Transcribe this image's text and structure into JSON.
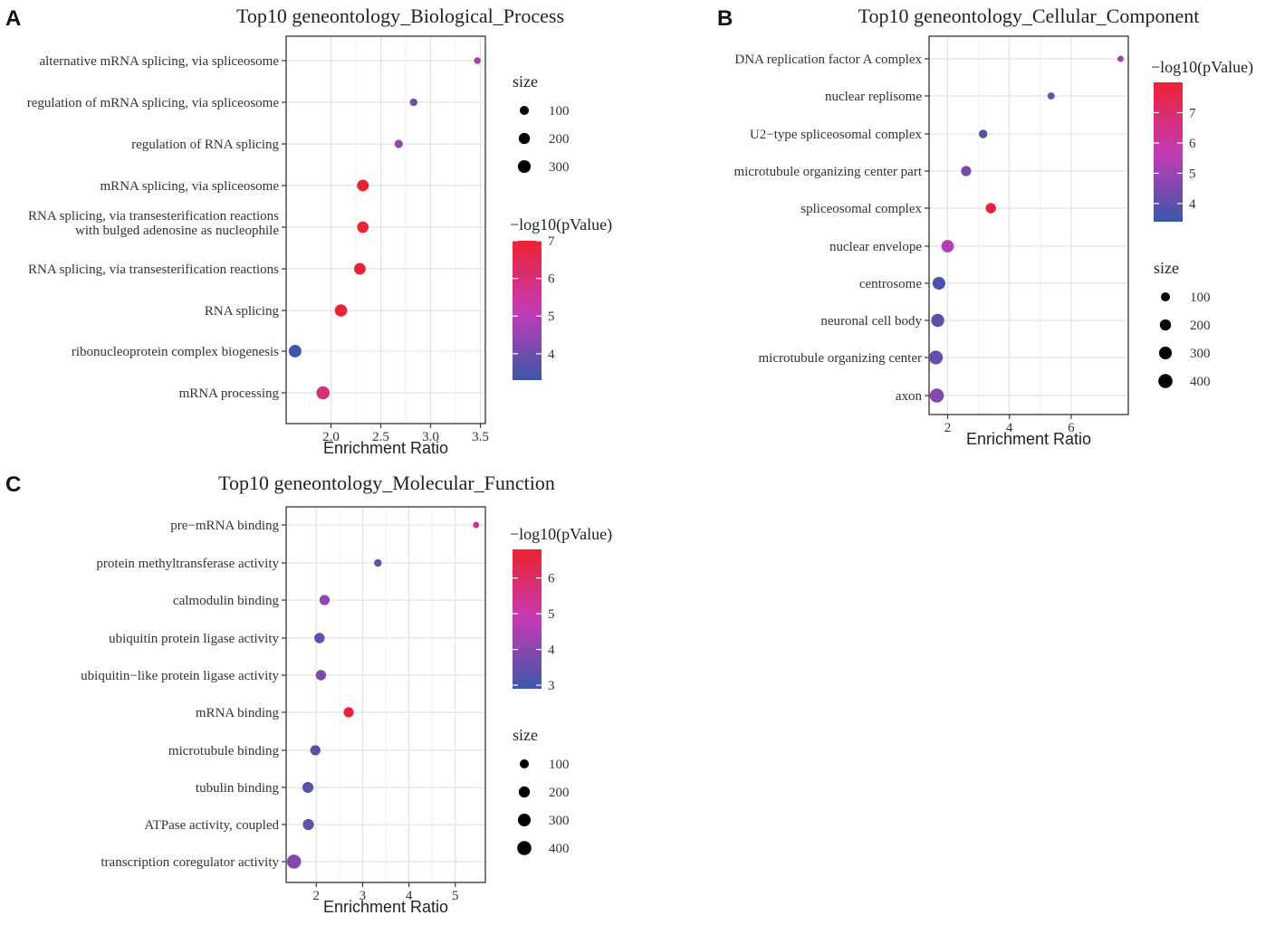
{
  "colors": {
    "low": "#3b57a8",
    "mid": "#c43bb5",
    "high": "#ee2130",
    "grid": "#e3e3e3",
    "axis": "#333333",
    "text": "#333333"
  },
  "chart_data": [
    {
      "type": "scatter",
      "panel_label": "A",
      "title": "Top10 geneontology_Biological_Process",
      "xlabel": "Enrichment Ratio",
      "xlim": [
        1.55,
        3.55
      ],
      "xticks": [
        "2.0",
        "2.5",
        "3.0",
        "3.5"
      ],
      "xtick_values": [
        2.0,
        2.5,
        3.0,
        3.5
      ],
      "categories": [
        "alternative mRNA splicing, via spliceosome",
        "regulation of mRNA splicing, via spliceosome",
        "regulation of RNA splicing",
        "mRNA splicing, via spliceosome",
        [
          "RNA splicing, via transesterification reactions",
          "with bulged adenosine as nucleophile"
        ],
        "RNA splicing, via transesterification reactions",
        "RNA splicing",
        "ribonucleoprotein complex biogenesis",
        "mRNA processing"
      ],
      "points": [
        {
          "x": 3.47,
          "size": 30,
          "neglog10p": 4.8
        },
        {
          "x": 2.83,
          "size": 50,
          "neglog10p": 4.0
        },
        {
          "x": 2.68,
          "size": 75,
          "neglog10p": 4.5
        },
        {
          "x": 2.32,
          "size": 230,
          "neglog10p": 7.0
        },
        {
          "x": 2.32,
          "size": 220,
          "neglog10p": 6.9
        },
        {
          "x": 2.29,
          "size": 230,
          "neglog10p": 6.9
        },
        {
          "x": 2.1,
          "size": 270,
          "neglog10p": 6.9
        },
        {
          "x": 1.64,
          "size": 290,
          "neglog10p": 3.3
        },
        {
          "x": 1.92,
          "size": 330,
          "neglog10p": 6.0
        }
      ],
      "legend_order": [
        "size",
        "color"
      ],
      "size_legend": {
        "title": "size",
        "breaks": [
          "100",
          "200",
          "300"
        ],
        "values": [
          100,
          200,
          300
        ]
      },
      "color_legend": {
        "title": "−log10(pValue)",
        "breaks": [
          "7",
          "6",
          "5",
          "4"
        ],
        "values": [
          7,
          6,
          5,
          4
        ],
        "range": [
          3.3,
          7.0
        ]
      }
    },
    {
      "type": "scatter",
      "panel_label": "B",
      "title": "Top10 geneontology_Cellular_Component",
      "xlabel": "Enrichment Ratio",
      "xlim": [
        1.4,
        7.85
      ],
      "xticks": [
        "2",
        "4",
        "6"
      ],
      "xtick_values": [
        2,
        4,
        6
      ],
      "categories": [
        "DNA replication factor A complex",
        "nuclear replisome",
        "U2−type spliceosomal complex",
        "microtubule organizing center part",
        "spliceosomal complex",
        "nuclear envelope",
        "centrosome",
        "neuronal cell body",
        "microtubule organizing center",
        "axon"
      ],
      "points": [
        {
          "x": 7.6,
          "size": 20,
          "neglog10p": 5.0
        },
        {
          "x": 5.35,
          "size": 40,
          "neglog10p": 4.2
        },
        {
          "x": 3.15,
          "size": 80,
          "neglog10p": 3.8
        },
        {
          "x": 2.6,
          "size": 150,
          "neglog10p": 4.4
        },
        {
          "x": 3.4,
          "size": 160,
          "neglog10p": 7.8
        },
        {
          "x": 2.0,
          "size": 280,
          "neglog10p": 5.5
        },
        {
          "x": 1.72,
          "size": 300,
          "neglog10p": 3.7
        },
        {
          "x": 1.68,
          "size": 320,
          "neglog10p": 3.9
        },
        {
          "x": 1.62,
          "size": 380,
          "neglog10p": 4.1
        },
        {
          "x": 1.65,
          "size": 400,
          "neglog10p": 4.6
        }
      ],
      "legend_order": [
        "color",
        "size"
      ],
      "size_legend": {
        "title": "size",
        "breaks": [
          "100",
          "200",
          "300",
          "400"
        ],
        "values": [
          100,
          200,
          300,
          400
        ]
      },
      "color_legend": {
        "title": "−log10(pValue)",
        "breaks": [
          "7",
          "6",
          "5",
          "4"
        ],
        "values": [
          7,
          6,
          5,
          4
        ],
        "range": [
          3.4,
          8.0
        ]
      }
    },
    {
      "type": "scatter",
      "panel_label": "C",
      "title": "Top10 geneontology_Molecular_Function",
      "xlabel": "Enrichment Ratio",
      "xlim": [
        1.35,
        5.65
      ],
      "xticks": [
        "2",
        "3",
        "4",
        "5"
      ],
      "xtick_values": [
        2,
        3,
        4,
        5
      ],
      "categories": [
        "pre−mRNA binding",
        "protein methyltransferase activity",
        "calmodulin binding",
        "ubiquitin protein ligase activity",
        "ubiquitin−like protein ligase activity",
        "mRNA binding",
        "microtubule binding",
        "tubulin binding",
        "ATPase activity, coupled",
        "transcription coregulator activity"
      ],
      "points": [
        {
          "x": 5.45,
          "size": 20,
          "neglog10p": 5.4
        },
        {
          "x": 3.33,
          "size": 50,
          "neglog10p": 3.3
        },
        {
          "x": 2.18,
          "size": 150,
          "neglog10p": 4.1
        },
        {
          "x": 2.07,
          "size": 160,
          "neglog10p": 3.6
        },
        {
          "x": 2.1,
          "size": 160,
          "neglog10p": 3.9
        },
        {
          "x": 2.7,
          "size": 150,
          "neglog10p": 6.6
        },
        {
          "x": 1.98,
          "size": 150,
          "neglog10p": 3.3
        },
        {
          "x": 1.82,
          "size": 190,
          "neglog10p": 3.3
        },
        {
          "x": 1.83,
          "size": 200,
          "neglog10p": 3.5
        },
        {
          "x": 1.52,
          "size": 400,
          "neglog10p": 3.9
        }
      ],
      "legend_order": [
        "color",
        "size"
      ],
      "size_legend": {
        "title": "size",
        "breaks": [
          "100",
          "200",
          "300",
          "400"
        ],
        "values": [
          100,
          200,
          300,
          400
        ]
      },
      "color_legend": {
        "title": "−log10(pValue)",
        "breaks": [
          "6",
          "5",
          "4",
          "3"
        ],
        "values": [
          6,
          5,
          4,
          3
        ],
        "range": [
          2.9,
          6.8
        ]
      }
    }
  ]
}
